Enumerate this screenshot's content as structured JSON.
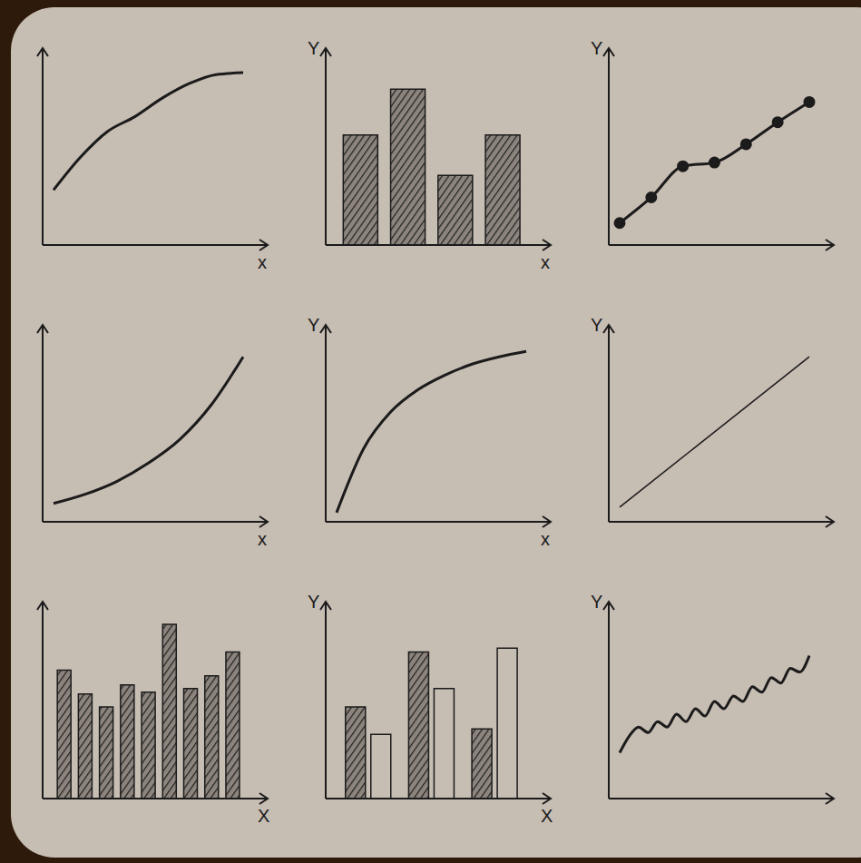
{
  "chart_data": [
    {
      "type": "line",
      "x_label": "x",
      "values": [
        3,
        4.8,
        6.2,
        7,
        8,
        8.8,
        9.3,
        9.4
      ],
      "color": "#1b1b1b",
      "ylim": [
        0,
        10
      ],
      "tick_labels": false,
      "line_style": "solid"
    },
    {
      "type": "bar",
      "x_label": "x",
      "y_label": "Y",
      "values": [
        6,
        8.5,
        3.8,
        6
      ],
      "color": "#222222",
      "ylim": [
        0,
        10
      ],
      "tick_labels": false
    },
    {
      "type": "line",
      "y_label": "Y",
      "values": [
        1.2,
        2.6,
        4.3,
        4.5,
        5.5,
        6.7,
        7.8
      ],
      "color": "#1b1b1b",
      "ylim": [
        0,
        10
      ],
      "tick_labels": false,
      "marker": "circle",
      "line_style": "solid"
    },
    {
      "type": "line",
      "x_label": "x",
      "values": [
        1,
        1.5,
        2.2,
        3.2,
        4.5,
        6.4,
        9
      ],
      "color": "#1b1b1b",
      "ylim": [
        0,
        10
      ],
      "tick_labels": false,
      "line_style": "solid"
    },
    {
      "type": "line",
      "x_label": "x",
      "y_label": "Y",
      "values": [
        0.5,
        4,
        6,
        7.2,
        8,
        8.6,
        9,
        9.3
      ],
      "color": "#1b1b1b",
      "ylim": [
        0,
        10
      ],
      "tick_labels": false,
      "line_style": "solid"
    },
    {
      "type": "line",
      "y_label": "Y",
      "values": [
        0.8,
        9
      ],
      "color": "#1b1b1b",
      "ylim": [
        0,
        10
      ],
      "tick_labels": false,
      "line_style": "solid"
    },
    {
      "type": "bar",
      "x_label": "X",
      "values": [
        7,
        5.7,
        5,
        6.2,
        5.8,
        9.5,
        6,
        6.7,
        8
      ],
      "color": "#222222",
      "ylim": [
        0,
        10
      ],
      "tick_labels": false
    },
    {
      "type": "bar",
      "x_label": "X",
      "y_label": "Y",
      "series": [
        {
          "color": "#222222",
          "values": [
            5,
            8,
            3.8
          ]
        },
        {
          "color": "#c6bdb3",
          "values": [
            3.5,
            6,
            8.2
          ]
        }
      ],
      "ylim": [
        0,
        10
      ],
      "tick_labels": false
    },
    {
      "type": "line",
      "y_label": "Y",
      "values": [
        2.5,
        3.4,
        3.9,
        3.6,
        4.2,
        3.9,
        4.6,
        4.2,
        4.9,
        4.5,
        5.3,
        4.9,
        5.6,
        5.3,
        6.1,
        5.8,
        6.6,
        6.3,
        7.1,
        6.9,
        7.8
      ],
      "color": "#1b1b1b",
      "ylim": [
        0,
        10
      ],
      "tick_labels": false,
      "line_style": "solid"
    }
  ]
}
